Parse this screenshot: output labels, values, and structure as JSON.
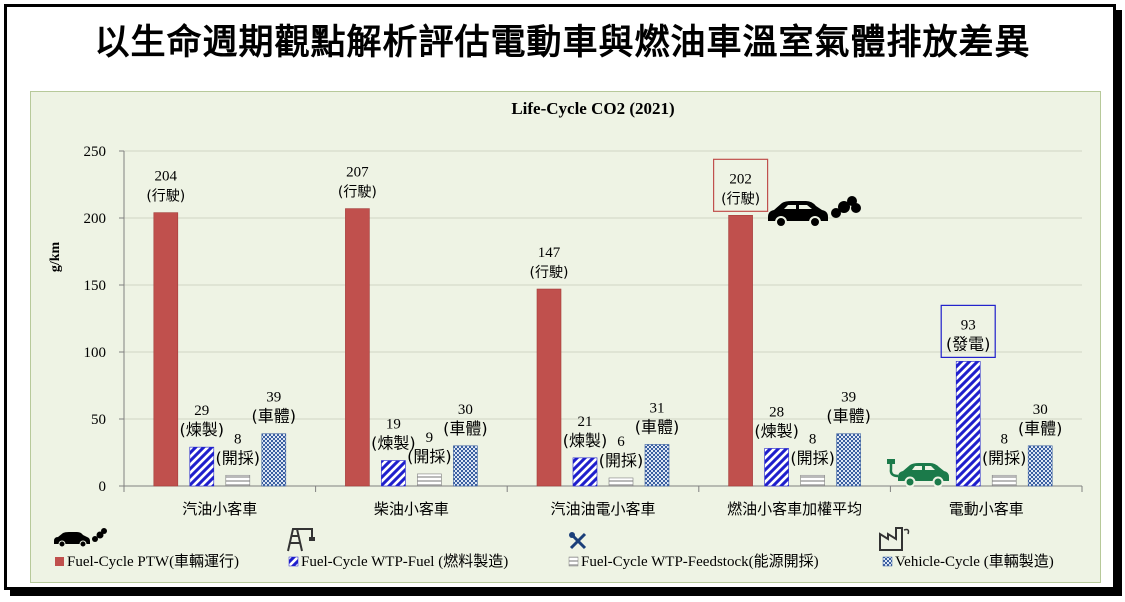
{
  "page_title": "以生命週期觀點解析評估電動車與燃油車溫室氣體排放差異",
  "chart_data": {
    "type": "bar",
    "title": "Life-Cycle  CO2 (2021)",
    "ylabel": "g/km",
    "ylim": [
      0,
      250
    ],
    "yticks": [
      0,
      50,
      100,
      150,
      200,
      250
    ],
    "grid": true,
    "legend_position": "bottom",
    "categories": [
      "汽油小客車",
      "柴油小客車",
      "汽油油電小客車",
      "燃油小客車加權平均",
      "電動小客車"
    ],
    "series": [
      {
        "name": "Fuel-Cycle PTW(車輛運行)",
        "color": "#c0504d",
        "pattern": "solid",
        "values": [
          204,
          207,
          147,
          202,
          0
        ],
        "labels": [
          "204",
          "207",
          "147",
          "202",
          ""
        ],
        "sublabels": [
          "(行駛)",
          "(行駛)",
          "(行駛)",
          "(行駛)",
          ""
        ]
      },
      {
        "name": "Fuel-Cycle  WTP-Fuel (燃料製造)",
        "color": "#1f1fcc",
        "pattern": "diagonal",
        "values": [
          29,
          19,
          21,
          28,
          93
        ],
        "labels": [
          "29",
          "19",
          "21",
          "28",
          "93"
        ],
        "sublabels": [
          "(煉製)",
          "(煉製)",
          "(煉製)",
          "(煉製)",
          "(發電)"
        ]
      },
      {
        "name": "Fuel-Cycle  WTP-Feedstock(能源開採)",
        "color": "#7f7f7f",
        "pattern": "horizontal",
        "values": [
          8,
          9,
          6,
          8,
          8
        ],
        "labels": [
          "8",
          "9",
          "6",
          "8",
          "8"
        ],
        "sublabels": [
          "(開採)",
          "(開採)",
          "(開採)",
          "(開採)",
          "(開採)"
        ]
      },
      {
        "name": "Vehicle-Cycle  (車輛製造)",
        "color": "#3a5fa0",
        "pattern": "checker",
        "values": [
          39,
          30,
          31,
          39,
          30
        ],
        "labels": [
          "39",
          "30",
          "31",
          "39",
          "30"
        ],
        "sublabels": [
          "(車體)",
          "(車體)",
          "(車體)",
          "(車體)",
          "(車體)"
        ]
      }
    ],
    "highlighted": [
      "燃油小客車加權平均 Fuel-Cycle PTW",
      "電動小客車 Fuel-Cycle WTP-Fuel"
    ]
  },
  "icons": [
    "car-exhaust-icon",
    "electric-car-icon",
    "oil-derrick-icon",
    "tools-icon",
    "factory-icon"
  ]
}
